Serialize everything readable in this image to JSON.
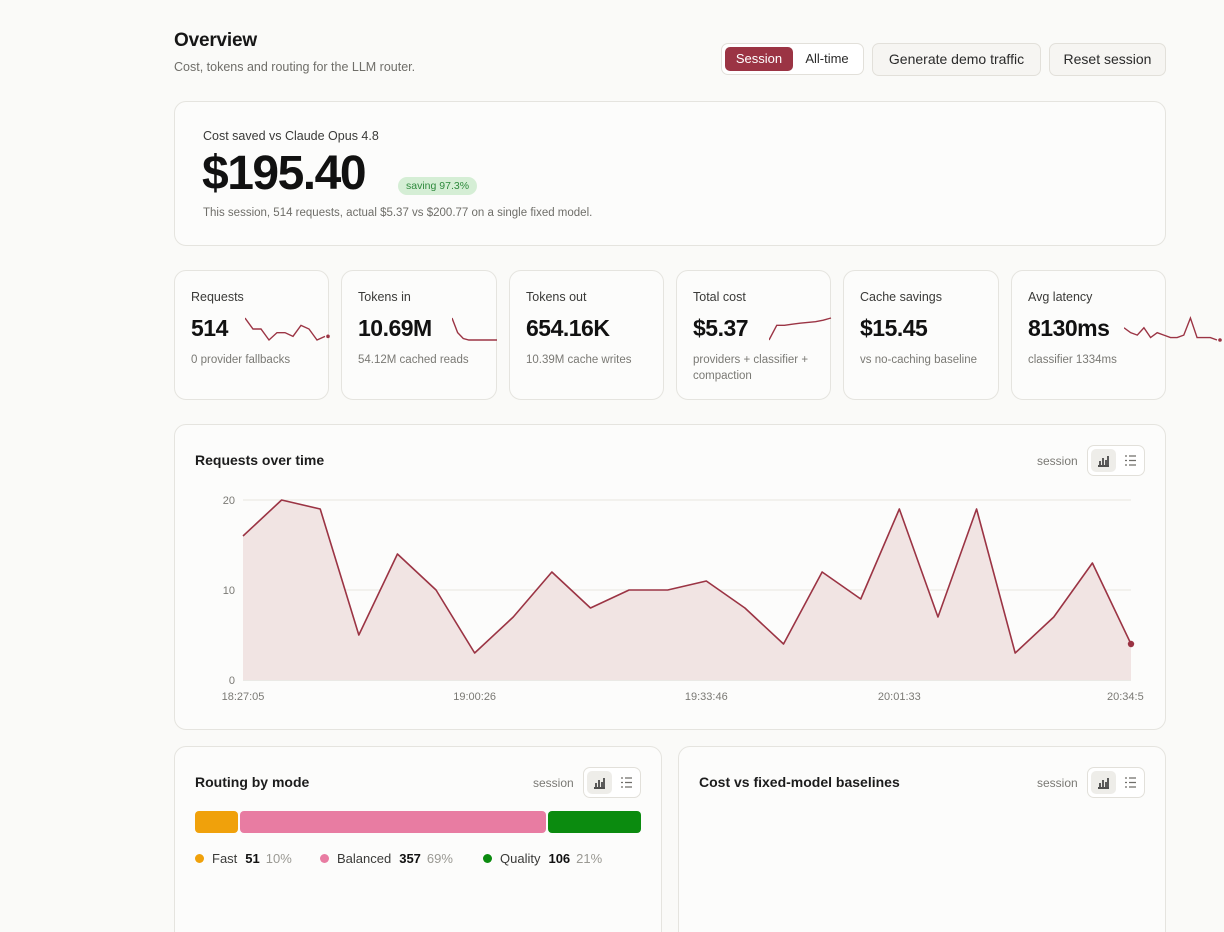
{
  "header": {
    "title": "Overview",
    "subtitle": "Cost, tokens and routing for the LLM router.",
    "scope_toggle": {
      "selected": "Session",
      "other": "All-time"
    },
    "actions": {
      "generate_label": "Generate demo traffic",
      "reset_label": "Reset session"
    }
  },
  "hero": {
    "label": "Cost saved vs Claude Opus 4.8",
    "value": "$195.40",
    "badge": "saving 97.3%",
    "note": "This session, 514 requests, actual $5.37 vs $200.77 on a single fixed model."
  },
  "kpis": [
    {
      "label": "Requests",
      "value": "514",
      "sub": "0 provider fallbacks",
      "spark": [
        14,
        11,
        11,
        8,
        10,
        10,
        9,
        12,
        11,
        8,
        9
      ]
    },
    {
      "label": "Tokens in",
      "value": "10.69M",
      "sub": "54.12M cached reads",
      "spark": [
        20,
        10,
        6,
        5,
        5,
        5,
        5,
        5,
        5
      ]
    },
    {
      "label": "Tokens out",
      "value": "654.16K",
      "sub": "10.39M cache writes",
      "spark": []
    },
    {
      "label": "Total cost",
      "value": "$5.37",
      "sub": "providers + classifier + compaction",
      "spark": [
        4,
        8,
        8,
        8.3,
        8.6,
        8.8,
        9,
        9.4,
        10
      ]
    },
    {
      "label": "Cache savings",
      "value": "$15.45",
      "sub": "vs no-caching baseline",
      "spark": []
    },
    {
      "label": "Avg latency",
      "value": "8130ms",
      "sub": "classifier 1334ms",
      "spark": [
        9,
        7,
        6,
        9,
        5,
        7,
        6,
        5,
        5,
        6,
        13,
        5,
        5,
        5,
        4
      ]
    }
  ],
  "requests_chart": {
    "title": "Requests over time",
    "scope": "session",
    "accent": "#9b3444",
    "fill": "#f1e4e3"
  },
  "chart_data": {
    "type": "area",
    "title": "Requests over time",
    "xlabel": "",
    "ylabel": "",
    "x_ticks": [
      "18:27:05",
      "19:00:26",
      "19:33:46",
      "20:01:33",
      "20:34:5"
    ],
    "y_ticks": [
      0,
      10,
      20
    ],
    "ylim": [
      0,
      20
    ],
    "grid": true,
    "series": [
      {
        "values": [
          16,
          20,
          19,
          5,
          14,
          10,
          3,
          7,
          12,
          8,
          10,
          10,
          11,
          8,
          4,
          12,
          9,
          19,
          7,
          19,
          3,
          7,
          13,
          4
        ]
      }
    ]
  },
  "routing": {
    "title": "Routing by mode",
    "scope": "session",
    "modes": [
      {
        "name": "Fast",
        "count": "51",
        "pct": "10%",
        "share": 0.1,
        "color": "#f0a10b"
      },
      {
        "name": "Balanced",
        "count": "357",
        "pct": "69%",
        "share": 0.69,
        "color": "#e87ca2"
      },
      {
        "name": "Quality",
        "count": "106",
        "pct": "21%",
        "share": 0.21,
        "color": "#0b8b0f"
      }
    ]
  },
  "baselines": {
    "title": "Cost vs fixed-model baselines",
    "scope": "session"
  }
}
